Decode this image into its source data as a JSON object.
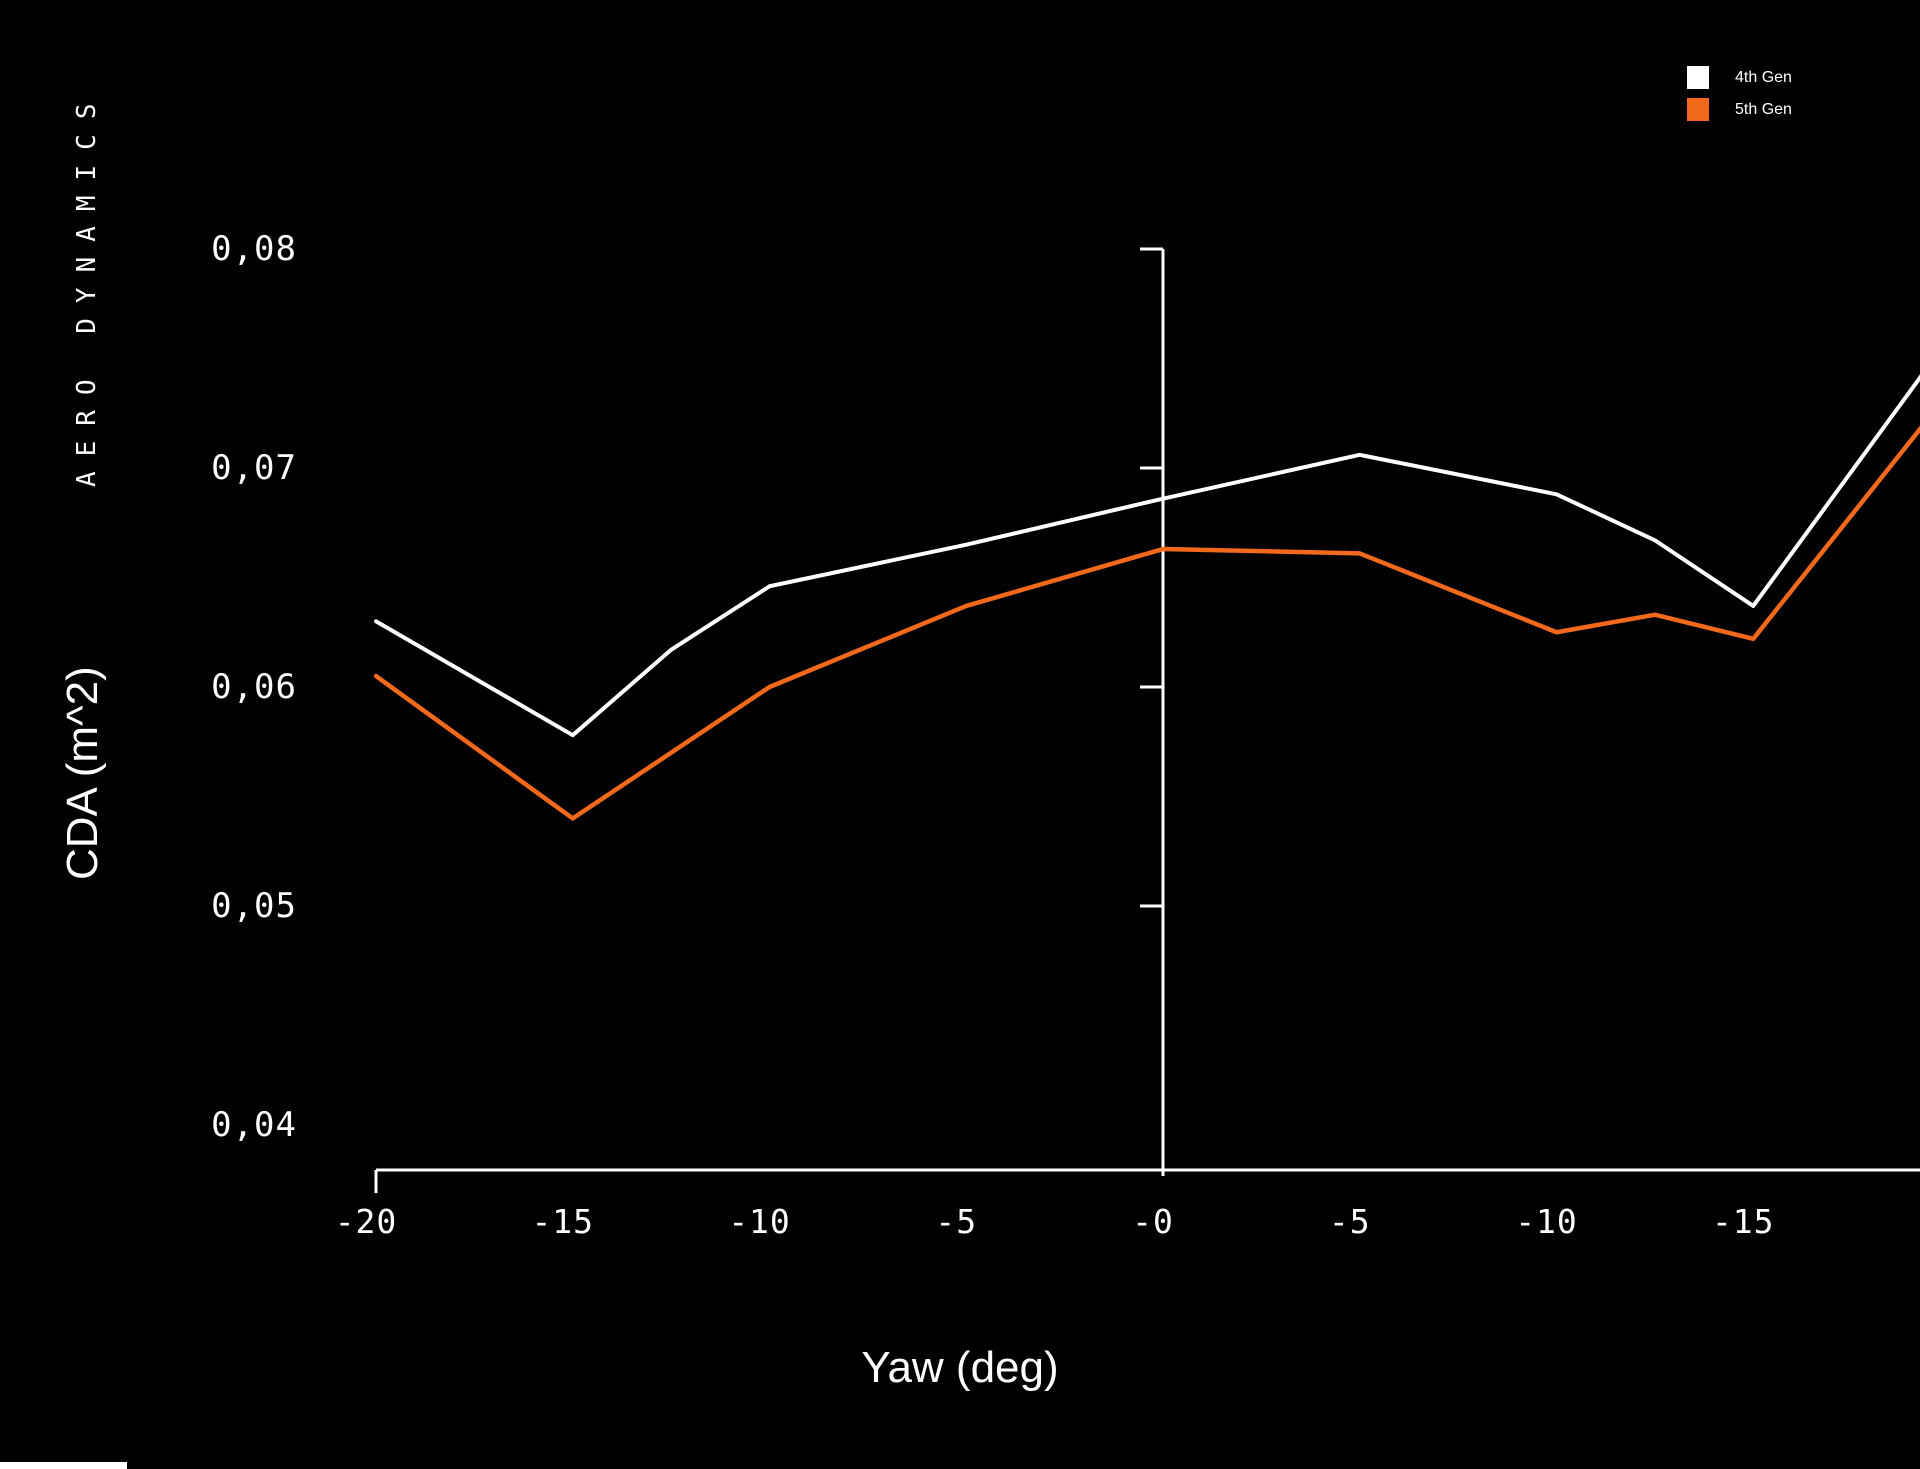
{
  "brand": "AERO DYNAMICS",
  "chart_data": {
    "type": "line",
    "title": "",
    "xlabel": "Yaw (deg)",
    "ylabel": "CDA (m^2)",
    "x_ticks": {
      "values": [
        -20,
        -15,
        -10,
        -5,
        0,
        5,
        10,
        15
      ],
      "labels": [
        "-20",
        "-15",
        "-10",
        "-5",
        "-0",
        "-5",
        "-10",
        "-15"
      ]
    },
    "y_ticks": {
      "values": [
        0.08,
        0.07,
        0.06,
        0.05,
        0.04
      ],
      "labels": [
        "0,08",
        "0,07",
        "0,06",
        "0,05",
        "0,04"
      ]
    },
    "xlim": [
      -20,
      19.25
    ],
    "ylim": [
      0.0379,
      0.08
    ],
    "grid": false,
    "legend_position": "top-right",
    "axis_color": "#ffffff",
    "background_color": "#000000",
    "series": [
      {
        "name": "4th Gen",
        "color": "#ffffff",
        "x": [
          -20,
          -15,
          -12.5,
          -10,
          -5,
          0,
          5,
          10,
          12.5,
          15,
          20
        ],
        "values": [
          0.063,
          0.0578,
          0.0617,
          0.0646,
          0.0665,
          0.0686,
          0.0706,
          0.0688,
          0.0667,
          0.0637,
          0.076
        ]
      },
      {
        "name": "5th Gen",
        "color": "#f2691b",
        "x": [
          -20,
          -15,
          -10,
          -5,
          0,
          5,
          10,
          12.5,
          15,
          20
        ],
        "values": [
          0.0605,
          0.054,
          0.06,
          0.0637,
          0.0663,
          0.0661,
          0.0625,
          0.0633,
          0.0622,
          0.0735
        ]
      }
    ]
  }
}
